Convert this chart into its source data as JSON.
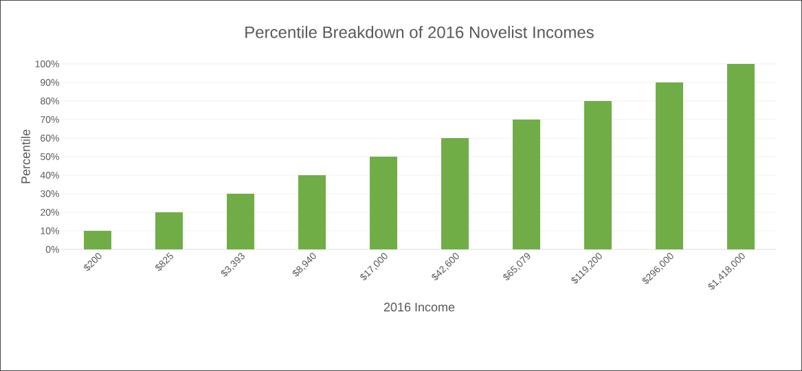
{
  "chart_data": {
    "type": "bar",
    "title": "Percentile Breakdown of 2016 Novelist Incomes",
    "xlabel": "2016 Income",
    "ylabel": "Percentile",
    "categories": [
      "$200",
      "$825",
      "$3,393",
      "$8,940",
      "$17,000",
      "$42,600",
      "$65,079",
      "$119,200",
      "$296,000",
      "$1,418,000"
    ],
    "values": [
      10,
      20,
      30,
      40,
      50,
      60,
      70,
      80,
      90,
      100
    ],
    "color": "#70ad47",
    "ylim": [
      0,
      100
    ],
    "yticks": [
      {
        "value": 0,
        "label": "0%"
      },
      {
        "value": 10,
        "label": "10%"
      },
      {
        "value": 20,
        "label": "20%"
      },
      {
        "value": 30,
        "label": "30%"
      },
      {
        "value": 40,
        "label": "40%"
      },
      {
        "value": 50,
        "label": "50%"
      },
      {
        "value": 60,
        "label": "60%"
      },
      {
        "value": 70,
        "label": "70%"
      },
      {
        "value": 80,
        "label": "80%"
      },
      {
        "value": 90,
        "label": "90%"
      },
      {
        "value": 100,
        "label": "100%"
      }
    ],
    "grid": "y"
  }
}
